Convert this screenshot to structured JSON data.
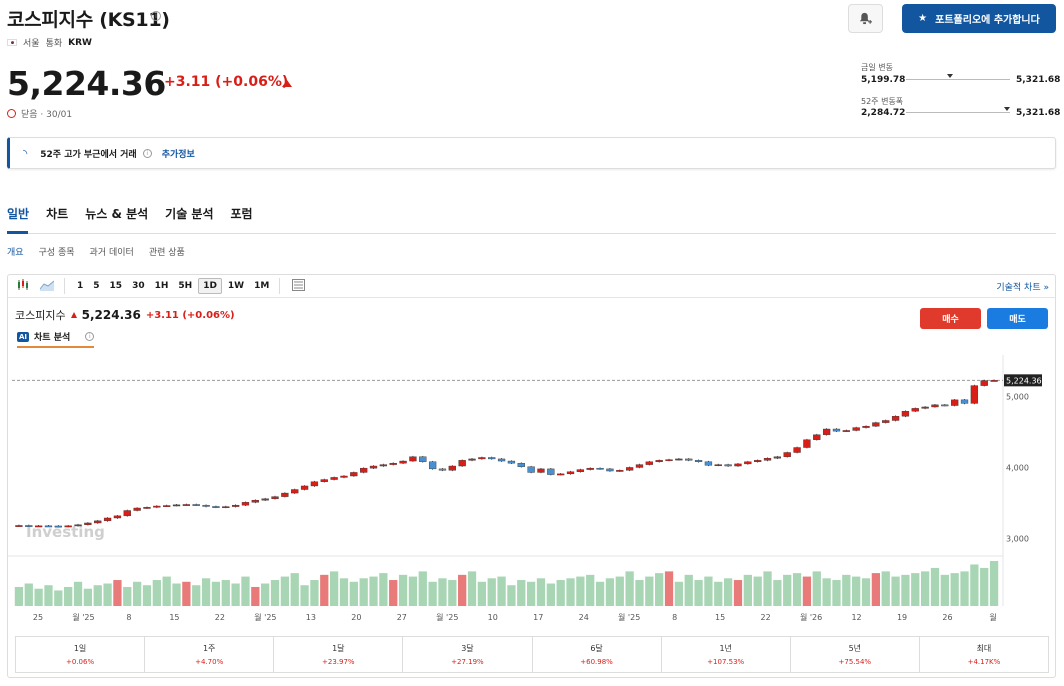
{
  "header": {
    "title": "코스피지수 (KS11)",
    "exchange": "서울",
    "currency_label": "통화",
    "currency": "KRW",
    "price": "5,224.36",
    "change": "+3.11 (+0.06%)",
    "status": "닫음 · 30/01",
    "portfolio_button": "포트폴리오에 추가합니다"
  },
  "ranges": {
    "day_label": "금일 변동",
    "day_low": "5,199.78",
    "day_high": "5,321.68",
    "day_position": 0.42,
    "year_label": "52주 변동폭",
    "year_low": "2,284.72",
    "year_high": "5,321.68",
    "year_position": 0.97
  },
  "banner": {
    "text": "52주 고가 부근에서 거래",
    "link": "추가정보"
  },
  "tabs": [
    "일반",
    "차트",
    "뉴스 & 분석",
    "기술 분석",
    "포럼"
  ],
  "subtabs": [
    "개요",
    "구성 종목",
    "과거 데이터",
    "관련 상품"
  ],
  "toolbar": {
    "intervals": [
      "1",
      "5",
      "15",
      "30",
      "1H",
      "5H",
      "1D",
      "1W",
      "1M"
    ],
    "active_interval": "1D",
    "tech_link": "기술적 차트"
  },
  "chart_header": {
    "name": "코스피지수",
    "price": "5,224.36",
    "change": "+3.11 (+0.06%)",
    "ai_label": "차트 분석",
    "buy": "매수",
    "sell": "매도"
  },
  "chart_data": {
    "type": "candlestick",
    "x_ticks": [
      "25",
      "월 '25",
      "8",
      "15",
      "22",
      "월 '25",
      "13",
      "20",
      "27",
      "월 '25",
      "10",
      "17",
      "24",
      "월 '25",
      "8",
      "15",
      "22",
      "월 '26",
      "12",
      "19",
      "26",
      "월"
    ],
    "y_ticks": [
      3000,
      4000,
      5000
    ],
    "ylim": [
      2770,
      5580
    ],
    "last_price_label": "5,224.36",
    "watermark": "Investing",
    "up_color": "#d91e18",
    "down_color": "#4a8fd0",
    "volume_color": "#a8d5b4",
    "volume_up_color": "#e87a7a",
    "closes": [
      3185,
      3178,
      3180,
      3178,
      3170,
      3180,
      3195,
      3220,
      3250,
      3290,
      3320,
      3395,
      3430,
      3440,
      3458,
      3465,
      3475,
      3480,
      3470,
      3452,
      3440,
      3450,
      3470,
      3510,
      3540,
      3560,
      3590,
      3640,
      3690,
      3740,
      3800,
      3830,
      3860,
      3880,
      3930,
      3990,
      4020,
      4040,
      4060,
      4090,
      4150,
      4080,
      3980,
      3960,
      4020,
      4100,
      4120,
      4140,
      4120,
      4090,
      4060,
      4010,
      3930,
      3980,
      3900,
      3910,
      3940,
      3970,
      3990,
      3980,
      3950,
      3960,
      4000,
      4040,
      4080,
      4100,
      4110,
      4120,
      4100,
      4080,
      4030,
      4040,
      4020,
      4050,
      4080,
      4100,
      4130,
      4150,
      4210,
      4280,
      4390,
      4460,
      4540,
      4510,
      4520,
      4560,
      4580,
      4630,
      4660,
      4720,
      4790,
      4830,
      4850,
      4880,
      4870,
      4950,
      4900,
      5150,
      5221,
      5224
    ],
    "volumes": [
      55,
      65,
      50,
      60,
      45,
      55,
      70,
      50,
      60,
      65,
      75,
      55,
      70,
      60,
      75,
      85,
      65,
      70,
      60,
      80,
      70,
      75,
      65,
      85,
      55,
      65,
      75,
      85,
      95,
      60,
      75,
      90,
      100,
      80,
      70,
      80,
      85,
      95,
      75,
      90,
      85,
      100,
      70,
      80,
      75,
      90,
      100,
      70,
      80,
      85,
      60,
      75,
      70,
      80,
      65,
      75,
      80,
      85,
      90,
      70,
      80,
      85,
      100,
      75,
      85,
      95,
      100,
      70,
      90,
      75,
      85,
      70,
      80,
      75,
      90,
      85,
      100,
      75,
      90,
      95,
      85,
      100,
      80,
      75,
      90,
      85,
      80,
      95,
      100,
      85,
      90,
      95,
      100,
      110,
      90,
      95,
      100,
      120,
      110,
      130
    ]
  },
  "performance": [
    {
      "label": "1일",
      "value": "+0.06%"
    },
    {
      "label": "1주",
      "value": "+4.70%"
    },
    {
      "label": "1달",
      "value": "+23.97%"
    },
    {
      "label": "3달",
      "value": "+27.19%"
    },
    {
      "label": "6달",
      "value": "+60.98%"
    },
    {
      "label": "1년",
      "value": "+107.53%"
    },
    {
      "label": "5년",
      "value": "+75.54%"
    },
    {
      "label": "최대",
      "value": "+4.17K%"
    }
  ]
}
